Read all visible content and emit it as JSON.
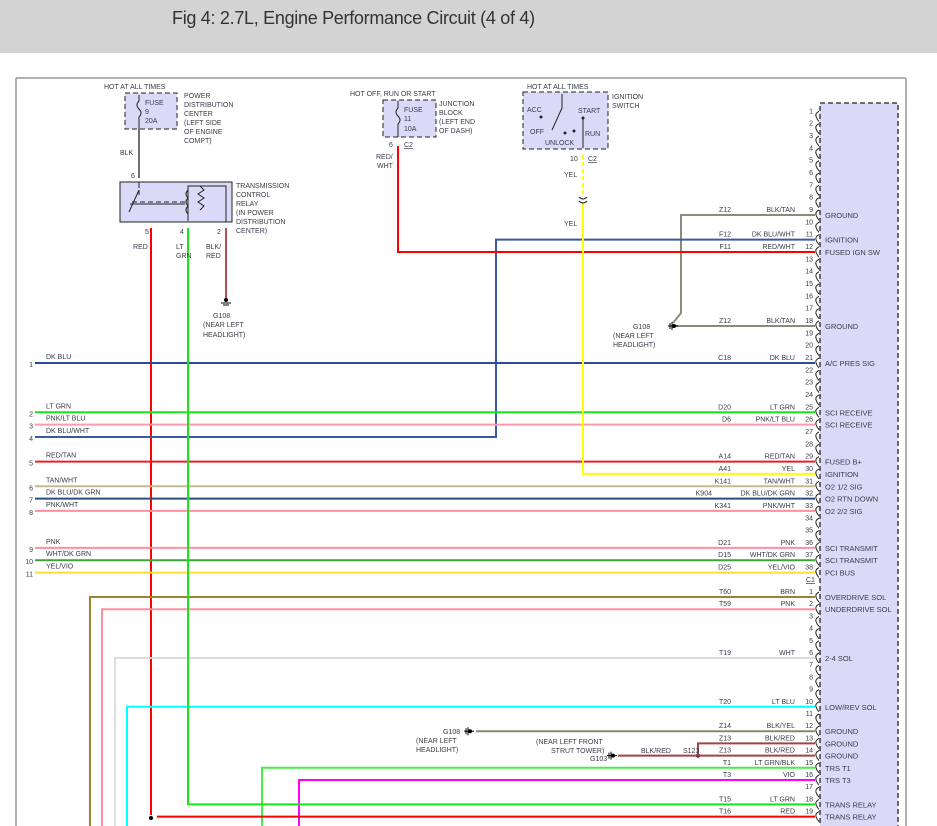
{
  "title": "Fig 4: 2.7L, Engine Performance Circuit (4 of 4)",
  "wire_colors": {
    "BLK": "#707070",
    "BLK/TAN": "#8c8a78",
    "DK BLU/WHT": "#3a5aa0",
    "RED/WHT": "#ff0000",
    "DK BLU": "#2b4a9b",
    "LT GRN": "#19e619",
    "PNK/LT BLU": "#ff9aaa",
    "RED/TAN": "#e8202a",
    "YEL": "#ffff00",
    "TAN/WHT": "#c8b88f",
    "DK BLU/DK GRN": "#2a4f7a",
    "PNK/WHT": "#ff8fa0",
    "PNK": "#ff8fa0",
    "WHT/DK GRN": "#3aa43a",
    "YEL/VIO": "#ffdd33",
    "BRN": "#9c8236",
    "WHT": "#dddddd",
    "LT BLU": "#00ffff",
    "BLK/YEL": "#8a8770",
    "BLK/RED": "#a84040",
    "LT GRN/BLK": "#44ee44",
    "VIO": "#ff00ff",
    "RED": "#ff0000",
    "BLK/RED relay": "#b05050",
    "module_fill": "#dadaf8"
  },
  "pdc": {
    "hot": "HOT AT ALL TIMES",
    "fuse": "FUSE",
    "num": "9",
    "amp": "20A",
    "desc": [
      "POWER",
      "DISTRIBUTION",
      "CENTER",
      "(LEFT SIDE",
      "OF ENGINE",
      "COMPT)"
    ],
    "wire": "BLK",
    "pin": "6"
  },
  "relay": {
    "desc": [
      "TRANSMISSION",
      "CONTROL",
      "RELAY",
      "(IN POWER",
      "DISTRIBUTION",
      "CENTER)"
    ],
    "pins": [
      {
        "pin": "5",
        "color": [
          "RED"
        ]
      },
      {
        "pin": "4",
        "color": [
          "LT",
          "GRN"
        ]
      },
      {
        "pin": "2",
        "color": [
          "BLK/",
          "RED"
        ]
      }
    ]
  },
  "g108_relay": {
    "name": "G108",
    "loc": [
      "(NEAR LEFT",
      "HEADLIGHT)"
    ]
  },
  "junction": {
    "hot": "HOT OFF, RUN OR START",
    "fuse": "FUSE",
    "num": "11",
    "amp": "10A",
    "desc": [
      "JUNCTION",
      "BLOCK",
      "(LEFT END",
      "OF DASH)"
    ],
    "pin": "6",
    "conn": "C2",
    "wire": [
      "RED/",
      "WHT"
    ]
  },
  "ignition": {
    "hot": "HOT AT ALL TIMES",
    "positions": {
      "acc": "ACC",
      "off": "OFF",
      "unlock": "UNLOCK",
      "start": "START",
      "run": "RUN"
    },
    "desc": [
      "IGNITION",
      "SWITCH"
    ],
    "pin": "10",
    "conn": "C2",
    "wire_top": "YEL",
    "wire_bottom": "YEL"
  },
  "g108_upper": {
    "name": "G108",
    "loc": [
      "(NEAR LEFT",
      "HEADLIGHT)"
    ]
  },
  "g108_lower": {
    "name": "G108",
    "loc": [
      "(NEAR LEFT",
      "HEADLIGHT)"
    ]
  },
  "g103": {
    "name": "G103",
    "loc": [
      "(NEAR LEFT FRONT",
      "STRUT TOWER)"
    ],
    "wire": "BLK/RED",
    "splice": "S123"
  },
  "left_connector": [
    {
      "num": "1",
      "color": "DK BLU"
    },
    {
      "num": "2",
      "color": "LT GRN"
    },
    {
      "num": "3",
      "color": "PNK/LT BLU"
    },
    {
      "num": "4",
      "color": "DK BLU/WHT"
    },
    {
      "num": "5",
      "color": "RED/TAN"
    },
    {
      "num": "6",
      "color": "TAN/WHT"
    },
    {
      "num": "7",
      "color": "DK BLU/DK GRN"
    },
    {
      "num": "8",
      "color": "PNK/WHT"
    },
    {
      "num": "9",
      "color": "PNK"
    },
    {
      "num": "10",
      "color": "WHT/DK GRN"
    },
    {
      "num": "11",
      "color": "YEL/VIO"
    }
  ],
  "module": {
    "c2": [
      {
        "pin": "1"
      },
      {
        "pin": "2"
      },
      {
        "pin": "3"
      },
      {
        "pin": "4"
      },
      {
        "pin": "5"
      },
      {
        "pin": "6"
      },
      {
        "pin": "7"
      },
      {
        "pin": "8"
      },
      {
        "pin": "9",
        "circuit": "Z12",
        "color": "BLK/TAN",
        "func": "GROUND"
      },
      {
        "pin": "10"
      },
      {
        "pin": "11",
        "circuit": "F12",
        "color": "DK BLU/WHT",
        "func": "IGNITION"
      },
      {
        "pin": "12",
        "circuit": "F11",
        "color": "RED/WHT",
        "func": "FUSED IGN SW"
      },
      {
        "pin": "13"
      },
      {
        "pin": "14"
      },
      {
        "pin": "15"
      },
      {
        "pin": "16"
      },
      {
        "pin": "17"
      },
      {
        "pin": "18",
        "circuit": "Z12",
        "color": "BLK/TAN",
        "func": "GROUND"
      },
      {
        "pin": "19"
      },
      {
        "pin": "20"
      },
      {
        "pin": "21",
        "circuit": "C18",
        "color": "DK BLU",
        "func": "A/C PRES SIG"
      },
      {
        "pin": "22"
      },
      {
        "pin": "23"
      },
      {
        "pin": "24"
      },
      {
        "pin": "25",
        "circuit": "D20",
        "color": "LT GRN",
        "func": "SCI RECEIVE"
      },
      {
        "pin": "26",
        "circuit": "D6",
        "color": "PNK/LT BLU",
        "func": "SCI RECEIVE"
      },
      {
        "pin": "27"
      },
      {
        "pin": "28"
      },
      {
        "pin": "29",
        "circuit": "A14",
        "color": "RED/TAN",
        "func": "FUSED B+"
      },
      {
        "pin": "30",
        "circuit": "A41",
        "color": "YEL",
        "func": "IGNITION"
      },
      {
        "pin": "31",
        "circuit": "K141",
        "color": "TAN/WHT",
        "func": "O2 1/2 SIG"
      },
      {
        "pin": "32",
        "circuit": "K904",
        "color": "DK BLU/DK GRN",
        "func": "O2 RTN DOWN"
      },
      {
        "pin": "33",
        "circuit": "K341",
        "color": "PNK/WHT",
        "func": "O2 2/2 SIG"
      },
      {
        "pin": "34"
      },
      {
        "pin": "35"
      },
      {
        "pin": "36",
        "circuit": "D21",
        "color": "PNK",
        "func": "SCI TRANSMIT"
      },
      {
        "pin": "37",
        "circuit": "D15",
        "color": "WHT/DK GRN",
        "func": "SCI TRANSMIT"
      },
      {
        "pin": "38",
        "circuit": "D25",
        "color": "YEL/VIO",
        "func": "PCI BUS"
      }
    ],
    "c1_label": "C1",
    "c1": [
      {
        "pin": "1",
        "circuit": "T60",
        "color": "BRN",
        "func": "OVERDRIVE SOL"
      },
      {
        "pin": "2",
        "circuit": "T59",
        "color": "PNK",
        "func": "UNDERDRIVE SOL"
      },
      {
        "pin": "3"
      },
      {
        "pin": "4"
      },
      {
        "pin": "5"
      },
      {
        "pin": "6",
        "circuit": "T19",
        "color": "WHT",
        "func": "2-4 SOL"
      },
      {
        "pin": "7"
      },
      {
        "pin": "8"
      },
      {
        "pin": "9"
      },
      {
        "pin": "10",
        "circuit": "T20",
        "color": "LT BLU",
        "func": "LOW/REV SOL"
      },
      {
        "pin": "11"
      },
      {
        "pin": "12",
        "circuit": "Z14",
        "color": "BLK/YEL",
        "func": "GROUND"
      },
      {
        "pin": "13",
        "circuit": "Z13",
        "color": "BLK/RED",
        "func": "GROUND"
      },
      {
        "pin": "14",
        "circuit": "Z13",
        "color": "BLK/RED",
        "func": "GROUND"
      },
      {
        "pin": "15",
        "circuit": "T1",
        "color": "LT GRN/BLK",
        "func": "TRS T1"
      },
      {
        "pin": "16",
        "circuit": "T3",
        "color": "VIO",
        "func": "TRS T3"
      },
      {
        "pin": "17"
      },
      {
        "pin": "18",
        "circuit": "T15",
        "color": "LT GRN",
        "func": "TRANS RELAY"
      },
      {
        "pin": "19",
        "circuit": "T16",
        "color": "RED",
        "func": "TRANS RELAY"
      }
    ]
  }
}
